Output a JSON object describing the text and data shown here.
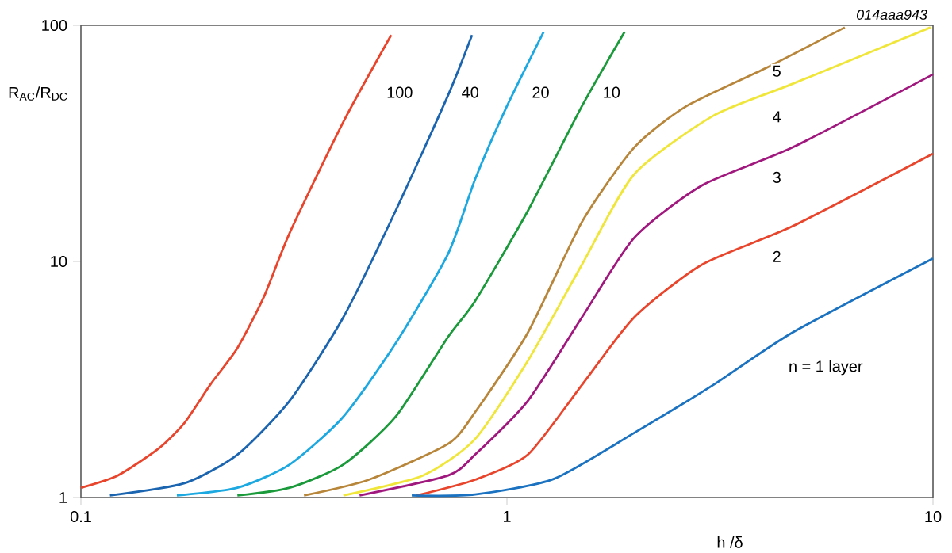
{
  "chart_data": {
    "type": "line",
    "xlabel": "h /δ",
    "ylabel": "R$_{AC}$/R$_{DC}$",
    "annotations": [
      "014aaa943"
    ],
    "log": "xy",
    "grid": false,
    "marker": "none",
    "line_style": "solid",
    "xlim": [
      0.1,
      10
    ],
    "ylim": [
      1,
      100
    ],
    "xticks": [
      0.1,
      1,
      10
    ],
    "yticks": [
      1,
      10,
      100
    ],
    "series": [
      {
        "name": "100",
        "color": "#e8452c",
        "x": [
          0.1,
          0.122,
          0.152,
          0.175,
          0.201,
          0.233,
          0.269,
          0.309,
          0.413,
          0.535
        ],
        "values": [
          1.1,
          1.24,
          1.61,
          2.07,
          3.0,
          4.3,
          7.1,
          13.2,
          39,
          91
        ]
      },
      {
        "name": "40",
        "color": "#1a64b0",
        "x": [
          0.117,
          0.175,
          0.233,
          0.309,
          0.413,
          0.548,
          0.728,
          0.828
        ],
        "values": [
          1.02,
          1.15,
          1.52,
          2.57,
          5.8,
          16.4,
          50.7,
          91
        ]
      },
      {
        "name": "20",
        "color": "#1ca8e0",
        "x": [
          0.168,
          0.233,
          0.309,
          0.413,
          0.548,
          0.728,
          0.842,
          1.0,
          1.22
        ],
        "values": [
          1.02,
          1.1,
          1.38,
          2.2,
          4.5,
          10.8,
          22.3,
          45.5,
          94
        ]
      },
      {
        "name": "10",
        "color": "#1a9a3a",
        "x": [
          0.233,
          0.309,
          0.413,
          0.548,
          0.728,
          0.842,
          1.12,
          1.5,
          1.89
        ],
        "values": [
          1.02,
          1.1,
          1.38,
          2.2,
          4.8,
          6.8,
          16.4,
          45.5,
          94
        ]
      },
      {
        "name": "5",
        "color": "#b8863a",
        "x": [
          0.334,
          0.474,
          0.728,
          0.842,
          1.12,
          1.5,
          1.99,
          2.64,
          4.05,
          6.21
        ],
        "values": [
          1.02,
          1.19,
          1.69,
          2.3,
          5.0,
          14.7,
          30.4,
          45.5,
          65.9,
          98
        ]
      },
      {
        "name": "4",
        "color": "#f0e63a",
        "x": [
          0.413,
          0.635,
          0.842,
          1.12,
          1.5,
          1.99,
          3.05,
          4.68,
          9.87
        ],
        "values": [
          1.02,
          1.24,
          1.77,
          3.8,
          9.7,
          23.4,
          41.4,
          56.5,
          98
        ]
      },
      {
        "name": "3",
        "color": "#a0187e",
        "x": [
          0.451,
          0.728,
          0.842,
          1.12,
          1.5,
          1.99,
          2.87,
          4.68,
          10
        ],
        "values": [
          1.02,
          1.24,
          1.52,
          2.57,
          5.8,
          12.6,
          21,
          30.4,
          62
        ]
      },
      {
        "name": "2",
        "color": "#e8452c",
        "x": [
          0.614,
          0.842,
          1.12,
          1.5,
          1.99,
          2.87,
          4.68,
          10
        ],
        "values": [
          1.02,
          1.19,
          1.52,
          3.0,
          5.8,
          9.7,
          14.1,
          28.6
        ]
      },
      {
        "name": "n = 1 layer",
        "color": "#1a72c0",
        "x": [
          0.598,
          0.842,
          1.29,
          1.99,
          3.05,
          4.68,
          10
        ],
        "values": [
          1.02,
          1.03,
          1.2,
          1.88,
          3.0,
          5.0,
          10.3
        ]
      }
    ]
  }
}
